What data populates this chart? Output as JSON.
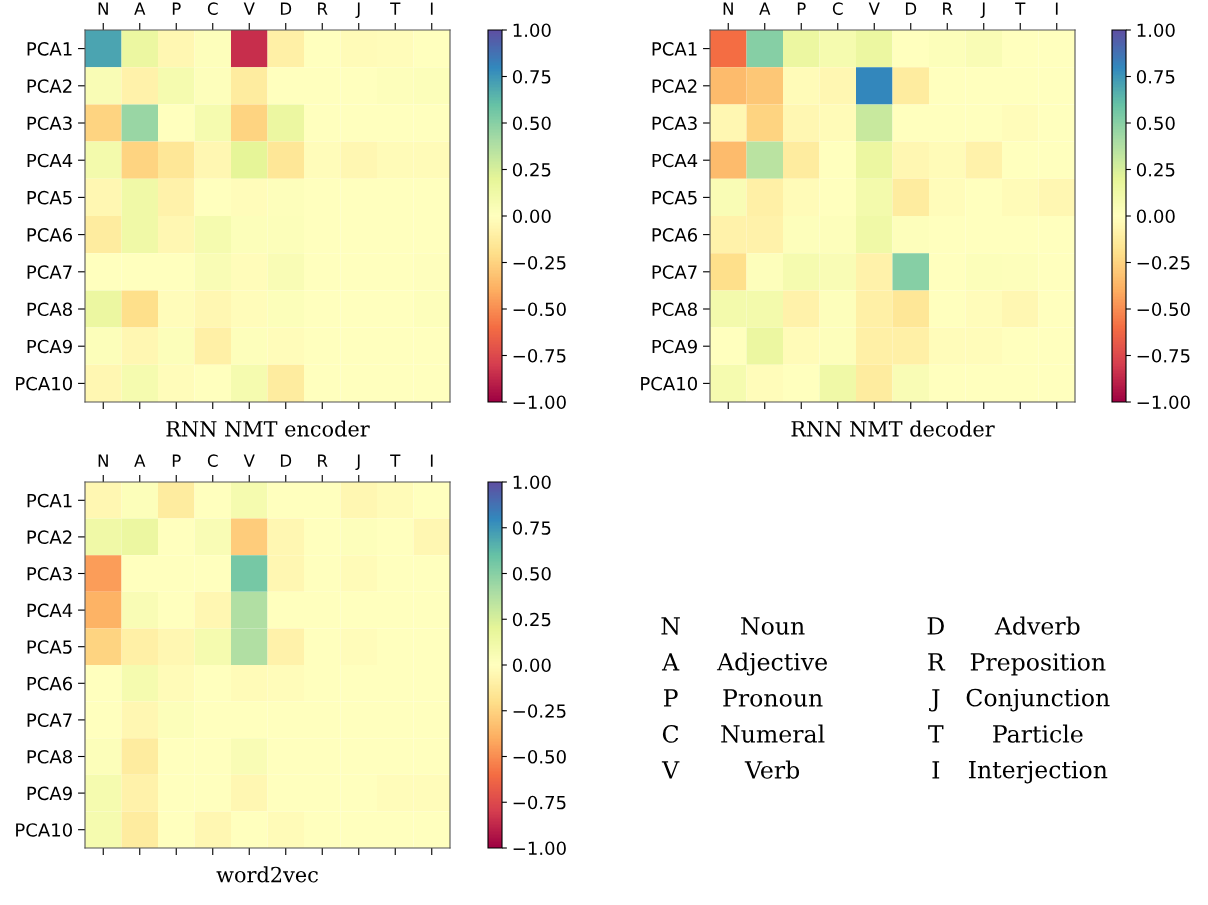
{
  "chart_data": [
    {
      "type": "heatmap",
      "title": "RNN NMT encoder",
      "categories": [
        "N",
        "A",
        "P",
        "C",
        "V",
        "D",
        "R",
        "J",
        "T",
        "I"
      ],
      "y_categories": [
        "PCA1",
        "PCA2",
        "PCA3",
        "PCA4",
        "PCA5",
        "PCA6",
        "PCA7",
        "PCA8",
        "PCA9",
        "PCA10"
      ],
      "cells": [
        [
          0.7,
          0.15,
          -0.05,
          0.02,
          -0.85,
          -0.1,
          0,
          -0.03,
          -0.02,
          0
        ],
        [
          0.05,
          -0.08,
          0.08,
          0.02,
          -0.12,
          0,
          0,
          0,
          0.02,
          0.03
        ],
        [
          -0.25,
          0.45,
          0,
          0.08,
          -0.25,
          0.15,
          0,
          0,
          0,
          0
        ],
        [
          0.1,
          -0.25,
          -0.15,
          -0.05,
          0.2,
          -0.15,
          -0.02,
          -0.05,
          -0.03,
          -0.03
        ],
        [
          -0.05,
          0.12,
          -0.08,
          0,
          -0.02,
          0.02,
          0,
          0,
          0,
          0
        ],
        [
          -0.12,
          0.12,
          -0.05,
          0.08,
          0.03,
          0.03,
          0,
          0,
          0,
          0
        ],
        [
          0,
          0,
          0,
          0.05,
          -0.02,
          0.05,
          0,
          0,
          0,
          0.01
        ],
        [
          0.15,
          -0.2,
          -0.02,
          -0.05,
          -0.02,
          0.03,
          0,
          0,
          0,
          0.02
        ],
        [
          0.03,
          -0.05,
          0.03,
          -0.1,
          0.02,
          -0.02,
          0,
          0,
          0,
          0
        ],
        [
          -0.05,
          0.08,
          -0.02,
          0,
          0.08,
          -0.12,
          0,
          0,
          0,
          0
        ]
      ],
      "clim": [
        -1,
        1
      ],
      "cticks": [
        {
          "value": -1,
          "label": "−1.00"
        },
        {
          "value": -0.75,
          "label": "−0.75"
        },
        {
          "value": -0.5,
          "label": "−0.50"
        },
        {
          "value": -0.25,
          "label": "−0.25"
        },
        {
          "value": 0,
          "label": "0.00"
        },
        {
          "value": 0.25,
          "label": "0.25"
        },
        {
          "value": 0.5,
          "label": "0.50"
        },
        {
          "value": 0.75,
          "label": "0.75"
        },
        {
          "value": 1,
          "label": "1.00"
        }
      ]
    },
    {
      "type": "heatmap",
      "title": "RNN NMT decoder",
      "categories": [
        "N",
        "A",
        "P",
        "C",
        "V",
        "D",
        "R",
        "J",
        "T",
        "I"
      ],
      "y_categories": [
        "PCA1",
        "PCA2",
        "PCA3",
        "PCA4",
        "PCA5",
        "PCA6",
        "PCA7",
        "PCA8",
        "PCA9",
        "PCA10"
      ],
      "cells": [
        [
          -0.6,
          0.5,
          0.15,
          0.08,
          0.15,
          0,
          0.03,
          0.05,
          0,
          0
        ],
        [
          -0.35,
          -0.3,
          -0.03,
          -0.05,
          0.8,
          -0.12,
          0,
          0,
          0,
          0
        ],
        [
          -0.05,
          -0.25,
          -0.05,
          -0.03,
          0.3,
          0,
          0,
          0,
          -0.02,
          0
        ],
        [
          -0.35,
          0.35,
          -0.12,
          0,
          0.15,
          -0.05,
          -0.03,
          -0.08,
          0,
          0
        ],
        [
          0.05,
          -0.1,
          -0.03,
          0,
          0.1,
          -0.12,
          -0.02,
          0,
          -0.03,
          -0.05
        ],
        [
          -0.08,
          -0.08,
          0.02,
          0.02,
          0.12,
          0.02,
          0,
          0,
          0,
          0
        ],
        [
          -0.2,
          0.02,
          0.08,
          0.05,
          -0.08,
          0.5,
          0,
          0.03,
          0.02,
          0
        ],
        [
          0.1,
          0.1,
          -0.08,
          0.02,
          -0.1,
          -0.15,
          0,
          -0.02,
          -0.05,
          0
        ],
        [
          0,
          0.15,
          -0.03,
          0.02,
          -0.1,
          -0.1,
          -0.02,
          -0.02,
          0,
          0
        ],
        [
          0.08,
          -0.02,
          0,
          0.12,
          -0.12,
          0.05,
          0,
          0,
          0,
          0
        ]
      ],
      "clim": [
        -1,
        1
      ],
      "cticks": [
        {
          "value": -1,
          "label": "−1.00"
        },
        {
          "value": -0.75,
          "label": "−0.75"
        },
        {
          "value": -0.5,
          "label": "−0.50"
        },
        {
          "value": -0.25,
          "label": "−0.25"
        },
        {
          "value": 0,
          "label": "0.00"
        },
        {
          "value": 0.25,
          "label": "0.25"
        },
        {
          "value": 0.5,
          "label": "0.50"
        },
        {
          "value": 0.75,
          "label": "0.75"
        },
        {
          "value": 1,
          "label": "1.00"
        }
      ]
    },
    {
      "type": "heatmap",
      "title": "word2vec",
      "categories": [
        "N",
        "A",
        "P",
        "C",
        "V",
        "D",
        "R",
        "J",
        "T",
        "I"
      ],
      "y_categories": [
        "PCA1",
        "PCA2",
        "PCA3",
        "PCA4",
        "PCA5",
        "PCA6",
        "PCA7",
        "PCA8",
        "PCA9",
        "PCA10"
      ],
      "cells": [
        [
          -0.05,
          0.03,
          -0.12,
          0,
          0.08,
          0,
          0,
          -0.05,
          -0.03,
          0
        ],
        [
          0.12,
          0.15,
          0,
          0.05,
          -0.28,
          -0.05,
          0,
          0.02,
          0,
          -0.05
        ],
        [
          -0.45,
          0,
          0,
          0,
          0.55,
          -0.05,
          0,
          -0.03,
          0,
          0
        ],
        [
          -0.38,
          0.05,
          0,
          -0.05,
          0.38,
          0,
          0,
          0,
          0,
          0
        ],
        [
          -0.25,
          -0.1,
          -0.05,
          0.08,
          0.38,
          -0.08,
          0,
          -0.02,
          0,
          0
        ],
        [
          0,
          0.08,
          -0.03,
          0,
          -0.03,
          -0.02,
          0,
          0,
          0,
          0
        ],
        [
          0,
          -0.05,
          0.03,
          0,
          0,
          0,
          0,
          0,
          0,
          0
        ],
        [
          0.03,
          -0.12,
          0,
          0,
          0.05,
          0,
          0,
          0,
          0,
          0
        ],
        [
          0.08,
          -0.08,
          0,
          0,
          -0.05,
          0,
          0,
          0,
          -0.02,
          -0.02
        ],
        [
          0.08,
          -0.12,
          0,
          -0.05,
          0,
          -0.03,
          0,
          0,
          0,
          0
        ]
      ],
      "clim": [
        -1,
        1
      ],
      "cticks": [
        {
          "value": -1,
          "label": "−1.00"
        },
        {
          "value": -0.75,
          "label": "−0.75"
        },
        {
          "value": -0.5,
          "label": "−0.50"
        },
        {
          "value": -0.25,
          "label": "−0.25"
        },
        {
          "value": 0,
          "label": "0.00"
        },
        {
          "value": 0.25,
          "label": "0.25"
        },
        {
          "value": 0.5,
          "label": "0.50"
        },
        {
          "value": 0.75,
          "label": "0.75"
        },
        {
          "value": 1,
          "label": "1.00"
        }
      ]
    },
    {
      "type": "other",
      "annotations": [
        "N",
        "Noun",
        "D",
        "Adverb",
        "A",
        "Adjective",
        "R",
        "Preposition",
        "P",
        "Pronoun",
        "J",
        "Conjunction",
        "C",
        "Numeral",
        "T",
        "Particle",
        "V",
        "Verb",
        "I",
        "Interjection"
      ]
    }
  ]
}
